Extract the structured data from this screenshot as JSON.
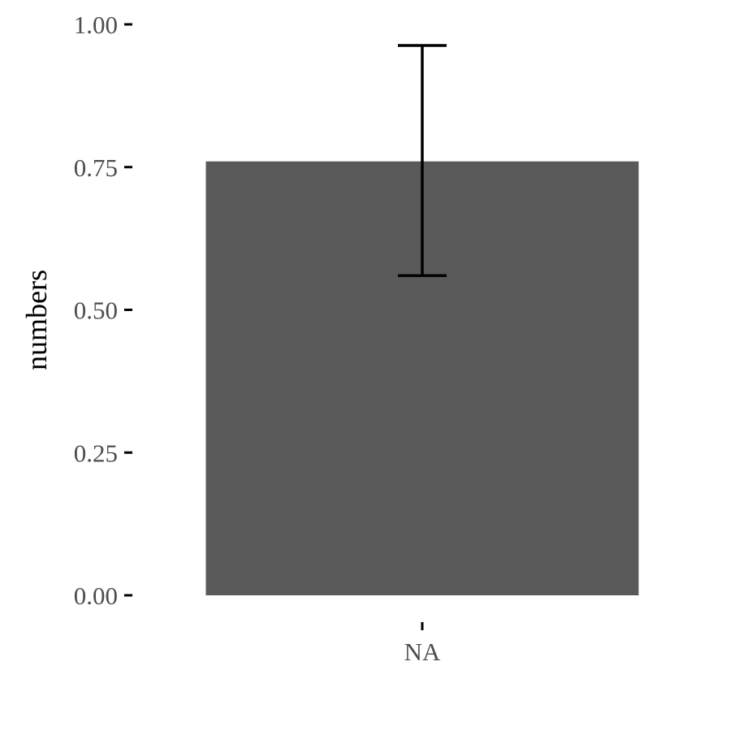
{
  "chart_data": {
    "type": "bar",
    "categories": [
      "NA"
    ],
    "values": [
      0.76
    ],
    "error_bars": [
      {
        "low": 0.56,
        "high": 0.963
      }
    ],
    "title": "",
    "xlabel": "",
    "ylabel": "numbers",
    "ylim": [
      0,
      1
    ],
    "yticks": [
      0,
      0.25,
      0.5,
      0.75,
      1
    ],
    "ytick_labels": [
      "0.00",
      "0.25",
      "0.50",
      "0.75",
      "1.00"
    ],
    "grid": false,
    "legend": "none",
    "colors": {
      "bar": "#595959",
      "error_bar": "#000000",
      "tick_label": "#4d4d4d",
      "axis_title": "#000000",
      "tick_mark": "#000000"
    }
  }
}
